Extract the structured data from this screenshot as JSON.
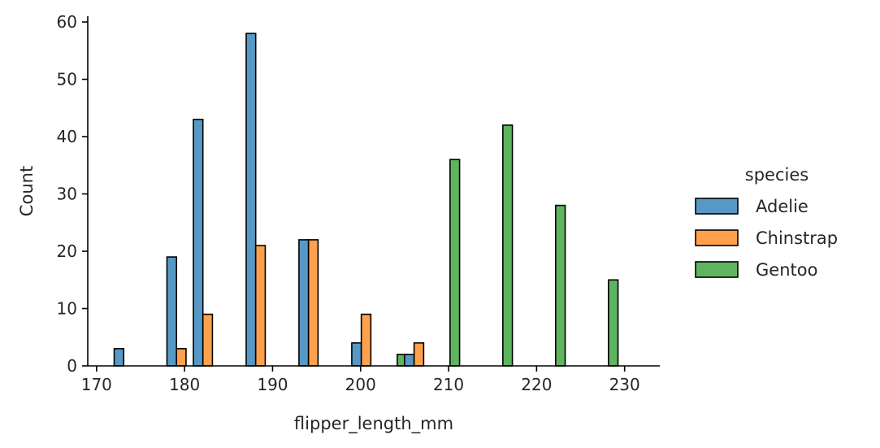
{
  "chart_data": {
    "type": "bar",
    "title": "",
    "xlabel": "flipper_length_mm",
    "ylabel": "Count",
    "xlim": [
      169,
      234
    ],
    "ylim": [
      0,
      61
    ],
    "xticks": [
      170,
      180,
      190,
      200,
      210,
      220,
      230
    ],
    "yticks": [
      0,
      10,
      20,
      30,
      40,
      50,
      60
    ],
    "grid": false,
    "legend": {
      "title": "species",
      "placement": "outside-right"
    },
    "bins": [
      [
        172,
        174
      ],
      [
        175,
        177
      ],
      [
        178,
        180
      ],
      [
        181,
        183
      ],
      [
        184,
        186
      ],
      [
        187,
        189
      ],
      [
        190,
        192
      ],
      [
        193,
        195
      ],
      [
        196,
        198
      ],
      [
        199,
        201
      ],
      [
        202,
        204
      ],
      [
        205,
        207
      ],
      [
        208,
        210
      ],
      [
        211,
        213
      ],
      [
        214,
        216
      ],
      [
        217,
        219
      ],
      [
        220,
        222
      ],
      [
        223,
        225
      ],
      [
        226,
        228
      ],
      [
        229,
        231
      ]
    ],
    "bin_width": 3.25,
    "series": [
      {
        "name": "Adelie",
        "color": "#5799c6",
        "values": [
          3,
          0,
          19,
          43,
          0,
          58,
          0,
          22,
          0,
          4,
          0,
          2,
          0,
          0,
          0,
          0,
          0,
          0,
          0,
          0
        ]
      },
      {
        "name": "Chinstrap",
        "color": "#ffa04c",
        "values": [
          0,
          0,
          3,
          9,
          0,
          21,
          0,
          22,
          0,
          9,
          0,
          4,
          0,
          0,
          0,
          0,
          0,
          0,
          0,
          0
        ]
      },
      {
        "name": "Gentoo",
        "color": "#5fb55f",
        "values": [
          0,
          0,
          0,
          0,
          0,
          0,
          0,
          0,
          0,
          0,
          2,
          0,
          36,
          0,
          42,
          0,
          28,
          0,
          15,
          0
        ]
      }
    ]
  }
}
